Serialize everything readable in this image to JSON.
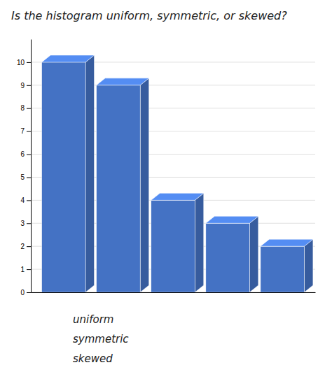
{
  "chart_data": {
    "type": "bar",
    "title": "Is the histogram uniform, symmetric, or skewed?",
    "categories": [
      null,
      null,
      null,
      null,
      null
    ],
    "values": [
      10,
      9,
      4,
      3,
      2
    ],
    "color": "#4472C4",
    "ylim": [
      0,
      11
    ],
    "yticks": [
      0,
      1,
      2,
      3,
      4,
      5,
      6,
      7,
      8,
      9,
      10
    ],
    "grid": true,
    "tick_labels": "y",
    "annotations": [
      "uniform",
      "symmetric",
      "skewed"
    ]
  }
}
